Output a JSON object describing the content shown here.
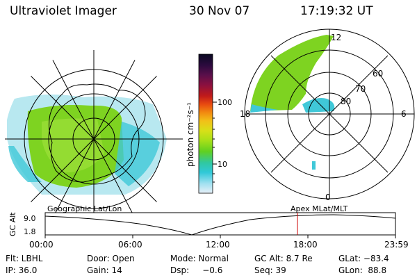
{
  "header": {
    "title": "Ultraviolet Imager",
    "date": "30 Nov 07",
    "time": "17:19:32 UT"
  },
  "colorbar": {
    "unit_label": "photon cm⁻²s⁻¹",
    "ticks": [
      "100",
      "10"
    ],
    "colors": [
      "#0a0a22",
      "#2c0a3e",
      "#5a0f4a",
      "#8a1040",
      "#c01a1a",
      "#e84a10",
      "#f28a10",
      "#f2c018",
      "#d8e018",
      "#a8e018",
      "#60d020",
      "#30c8a0",
      "#30c8d8",
      "#a0e0f0",
      "#e8f0f8"
    ]
  },
  "left_map": {
    "label": "Geographic Lat/Lon"
  },
  "right_map": {
    "label": "Apex  MLat/MLT",
    "mlt_labels": {
      "top": "12",
      "left": "18",
      "right": "6",
      "bottom": "0"
    },
    "lat_labels": [
      "60",
      "70",
      "80"
    ]
  },
  "timeline": {
    "y_axis_label": "GC Alt",
    "y_ticks": [
      "9.0",
      "1.8"
    ],
    "x_ticks": [
      "00:00",
      "06:00",
      "12:00",
      "18:00",
      "23:59"
    ],
    "current_marker_color": "#cc0000"
  },
  "info": {
    "row1": [
      "Flt: LBHL",
      "Door: Open",
      "Mode: Normal",
      "GC Alt: 8.7 Re",
      "GLat: −83.4"
    ],
    "row2": [
      "IP: 36.0",
      "Gain: 14",
      "Dsp:     −0.6",
      "Seq: 39",
      "GLon:  88.8"
    ]
  },
  "colors": {
    "uv_green": "#7ed321",
    "uv_cyan": "#40c8d8",
    "uv_pale": "#b8e8f0",
    "marker": "#cc0000"
  }
}
